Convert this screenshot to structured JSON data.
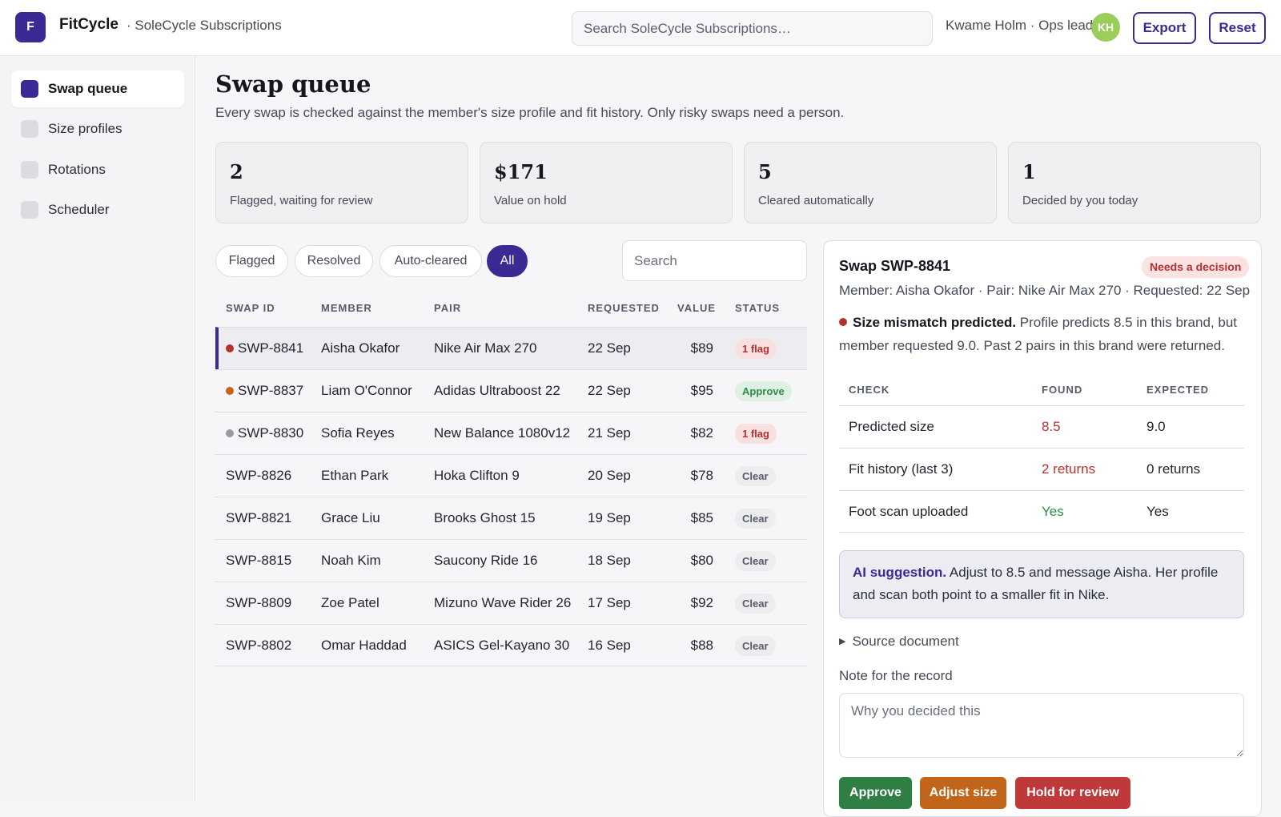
{
  "app": {
    "logo_letter": "F",
    "name": "FitCycle",
    "subtitle": "· SoleCycle Subscriptions",
    "search_placeholder": "Search SoleCycle Subscriptions…",
    "user_label": "Kwame Holm · Ops lead",
    "user_initials": "KH",
    "export_label": "Export",
    "reset_label": "Reset"
  },
  "sidebar": {
    "items": [
      {
        "label": "Swap queue",
        "active": true
      },
      {
        "label": "Size profiles",
        "active": false
      },
      {
        "label": "Rotations",
        "active": false
      },
      {
        "label": "Scheduler",
        "active": false
      }
    ]
  },
  "main": {
    "title": "Swap queue",
    "subtitle": "Every swap is checked against the member's size profile and fit history. Only risky swaps need a person.",
    "stats": [
      {
        "value": "2",
        "label": "Flagged, waiting for review"
      },
      {
        "value": "$171",
        "label": "Value on hold"
      },
      {
        "value": "5",
        "label": "Cleared automatically"
      },
      {
        "value": "1",
        "label": "Decided by you today"
      }
    ],
    "filters": [
      {
        "label": "Flagged",
        "active": false
      },
      {
        "label": "Resolved",
        "active": false
      },
      {
        "label": "Auto-cleared",
        "active": false
      },
      {
        "label": "All",
        "active": true
      }
    ],
    "search_placeholder": "Search"
  },
  "table": {
    "columns": [
      "SWAP ID",
      "MEMBER",
      "PAIR",
      "REQUESTED",
      "VALUE",
      "STATUS"
    ],
    "rows": [
      {
        "id": "SWP-8841",
        "member": "Aisha Okafor",
        "pair": "Nike Air Max 270",
        "requested": "22 Sep",
        "value": "$89",
        "status": "1 flag",
        "status_type": "flag",
        "dot": "#b3322f",
        "selected": true
      },
      {
        "id": "SWP-8837",
        "member": "Liam O'Connor",
        "pair": "Adidas Ultraboost 22",
        "requested": "22 Sep",
        "value": "$95",
        "status": "Approve",
        "status_type": "approve",
        "dot": "#c2651a",
        "selected": false
      },
      {
        "id": "SWP-8830",
        "member": "Sofia Reyes",
        "pair": "New Balance 1080v12",
        "requested": "21 Sep",
        "value": "$82",
        "status": "1 flag",
        "status_type": "flag",
        "dot": "#9a9aa6",
        "selected": false
      },
      {
        "id": "SWP-8826",
        "member": "Ethan Park",
        "pair": "Hoka Clifton 9",
        "requested": "20 Sep",
        "value": "$78",
        "status": "Clear",
        "status_type": "clear",
        "dot": "",
        "selected": false
      },
      {
        "id": "SWP-8821",
        "member": "Grace Liu",
        "pair": "Brooks Ghost 15",
        "requested": "19 Sep",
        "value": "$85",
        "status": "Clear",
        "status_type": "clear",
        "dot": "",
        "selected": false
      },
      {
        "id": "SWP-8815",
        "member": "Noah Kim",
        "pair": "Saucony Ride 16",
        "requested": "18 Sep",
        "value": "$80",
        "status": "Clear",
        "status_type": "clear",
        "dot": "",
        "selected": false
      },
      {
        "id": "SWP-8809",
        "member": "Zoe Patel",
        "pair": "Mizuno Wave Rider 26",
        "requested": "17 Sep",
        "value": "$92",
        "status": "Clear",
        "status_type": "clear",
        "dot": "",
        "selected": false
      },
      {
        "id": "SWP-8802",
        "member": "Omar Haddad",
        "pair": "ASICS Gel-Kayano 30",
        "requested": "16 Sep",
        "value": "$88",
        "status": "Clear",
        "status_type": "clear",
        "dot": "",
        "selected": false
      }
    ]
  },
  "detail": {
    "title": "Swap SWP-8841",
    "badge": "Needs a decision",
    "meta": "Member: Aisha Okafor · Pair: Nike Air Max 270 · Requested: 22 Sep",
    "alert_title": "Size mismatch predicted.",
    "alert_body": " Profile predicts 8.5 in this brand, but member requested 9.0. Past 2 pairs in this brand were returned.",
    "check_columns": [
      "CHECK",
      "FOUND",
      "EXPECTED"
    ],
    "checks": [
      {
        "check": "Predicted size",
        "found": "8.5",
        "expected": "9.0",
        "found_state": "bad"
      },
      {
        "check": "Fit history (last 3)",
        "found": "2 returns",
        "expected": "0 returns",
        "found_state": "bad"
      },
      {
        "check": "Foot scan uploaded",
        "found": "Yes",
        "expected": "Yes",
        "found_state": "good"
      }
    ],
    "ai_title": "AI suggestion.",
    "ai_body": " Adjust to 8.5 and message Aisha. Her profile and scan both point to a smaller fit in Nike.",
    "source_doc": "Source document",
    "note_label": "Note for the record",
    "note_placeholder": "Why you decided this",
    "actions": {
      "approve": "Approve",
      "adjust": "Adjust size",
      "hold": "Hold for review"
    }
  },
  "colors": {
    "brand": "#3a2a93",
    "danger": "#b3322f",
    "success": "#2f8a4a",
    "warning": "#c2651a"
  }
}
